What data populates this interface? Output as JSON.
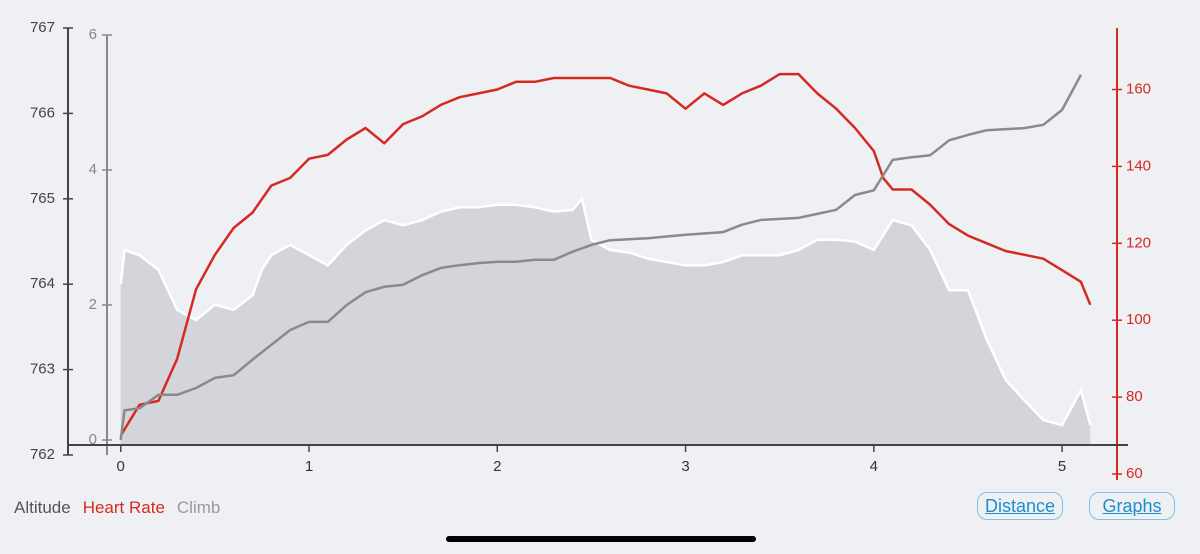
{
  "chart_data": {
    "type": "line",
    "xlim": [
      -0.28,
      5.35
    ],
    "xticks": [
      0,
      1,
      2,
      3,
      4,
      5
    ],
    "ylim": [
      762,
      767
    ],
    "yticks": [
      762,
      763,
      764,
      765,
      766,
      767
    ],
    "y2lim": [
      60,
      176
    ],
    "y2ticks": [
      60,
      80,
      100,
      120,
      140,
      160
    ],
    "y3lim": [
      0,
      6
    ],
    "y3ticks": [
      0,
      2,
      4,
      6
    ],
    "series": [
      {
        "name": "Altitude",
        "axis": "y",
        "style": "area",
        "color": "#d3d5da",
        "legend_color": "#555555",
        "x": [
          0,
          0.02,
          0.1,
          0.2,
          0.3,
          0.4,
          0.5,
          0.6,
          0.7,
          0.75,
          0.8,
          0.9,
          1.0,
          1.1,
          1.2,
          1.3,
          1.4,
          1.5,
          1.6,
          1.7,
          1.8,
          1.9,
          2.0,
          2.1,
          2.2,
          2.3,
          2.4,
          2.45,
          2.5,
          2.6,
          2.7,
          2.8,
          2.9,
          3.0,
          3.1,
          3.2,
          3.3,
          3.4,
          3.5,
          3.6,
          3.7,
          3.8,
          3.9,
          4.0,
          4.1,
          4.2,
          4.3,
          4.4,
          4.5,
          4.6,
          4.7,
          4.8,
          4.9,
          5.0,
          5.1,
          5.15
        ],
        "values": [
          764.0,
          764.4,
          764.34,
          764.17,
          763.7,
          763.58,
          763.76,
          763.7,
          763.87,
          764.17,
          764.34,
          764.46,
          764.34,
          764.22,
          764.46,
          764.63,
          764.75,
          764.69,
          764.75,
          764.85,
          764.9,
          764.9,
          764.93,
          764.93,
          764.9,
          764.85,
          764.87,
          765.0,
          764.52,
          764.4,
          764.37,
          764.3,
          764.26,
          764.22,
          764.22,
          764.26,
          764.34,
          764.34,
          764.34,
          764.4,
          764.52,
          764.52,
          764.5,
          764.4,
          764.75,
          764.69,
          764.4,
          763.93,
          763.93,
          763.35,
          762.88,
          762.64,
          762.41,
          762.35,
          762.76,
          762.35
        ]
      },
      {
        "name": "Heart Rate",
        "axis": "y2",
        "style": "line",
        "color": "#d42a22",
        "legend_color": "#d42a22",
        "x": [
          0,
          0.1,
          0.2,
          0.3,
          0.4,
          0.5,
          0.6,
          0.7,
          0.8,
          0.9,
          1.0,
          1.1,
          1.2,
          1.3,
          1.4,
          1.5,
          1.6,
          1.7,
          1.8,
          1.9,
          2.0,
          2.1,
          2.2,
          2.3,
          2.4,
          2.5,
          2.6,
          2.7,
          2.8,
          2.9,
          3.0,
          3.1,
          3.2,
          3.3,
          3.4,
          3.5,
          3.6,
          3.7,
          3.8,
          3.9,
          4.0,
          4.05,
          4.1,
          4.2,
          4.3,
          4.4,
          4.5,
          4.6,
          4.7,
          4.8,
          4.9,
          5.0,
          5.1,
          5.15
        ],
        "values": [
          70,
          78,
          79,
          90,
          108,
          117,
          124,
          128,
          135,
          137,
          142,
          143,
          147,
          150,
          146,
          151,
          153,
          156,
          158,
          159,
          160,
          162,
          162,
          163,
          163,
          163,
          163,
          161,
          160,
          159,
          155,
          159,
          156,
          159,
          161,
          164,
          164,
          159,
          155,
          150,
          144,
          137,
          134,
          134,
          130,
          125,
          122,
          120,
          118,
          117,
          116,
          113,
          110,
          104
        ]
      },
      {
        "name": "Climb",
        "axis": "y3",
        "style": "line",
        "color": "#8a8a8a",
        "legend_color": "#9a9a9a",
        "x": [
          0,
          0.02,
          0.1,
          0.2,
          0.3,
          0.4,
          0.5,
          0.6,
          0.7,
          0.8,
          0.9,
          1.0,
          1.1,
          1.2,
          1.3,
          1.4,
          1.5,
          1.6,
          1.7,
          1.8,
          1.9,
          2.0,
          2.1,
          2.2,
          2.3,
          2.4,
          2.5,
          2.6,
          2.8,
          3.0,
          3.2,
          3.3,
          3.4,
          3.6,
          3.8,
          3.9,
          4.0,
          4.1,
          4.2,
          4.3,
          4.4,
          4.5,
          4.6,
          4.8,
          4.9,
          5.0,
          5.1
        ],
        "values": [
          0,
          0.44,
          0.47,
          0.67,
          0.67,
          0.77,
          0.92,
          0.96,
          1.19,
          1.41,
          1.63,
          1.75,
          1.75,
          2.0,
          2.19,
          2.27,
          2.3,
          2.44,
          2.55,
          2.59,
          2.62,
          2.64,
          2.64,
          2.67,
          2.67,
          2.79,
          2.89,
          2.96,
          2.99,
          3.04,
          3.08,
          3.19,
          3.26,
          3.29,
          3.41,
          3.63,
          3.7,
          4.15,
          4.19,
          4.22,
          4.44,
          4.52,
          4.59,
          4.62,
          4.67,
          4.89,
          5.41
        ]
      }
    ]
  },
  "buttons": [
    "Distance",
    "Graphs"
  ]
}
